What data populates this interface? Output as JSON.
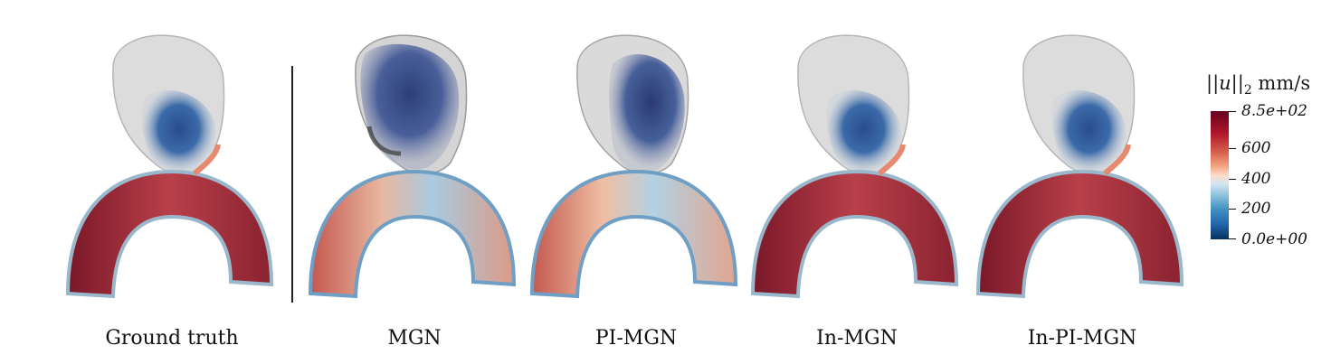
{
  "panels": [
    {
      "caption": "Ground truth",
      "arch": "red",
      "sac": "gt"
    },
    {
      "caption": "MGN",
      "arch": "light",
      "sac": "dark"
    },
    {
      "caption": "PI-MGN",
      "arch": "light",
      "sac": "dark"
    },
    {
      "caption": "In-MGN",
      "arch": "red",
      "sac": "gt"
    },
    {
      "caption": "In-PI-MGN",
      "arch": "red",
      "sac": "gt"
    }
  ],
  "colorbar": {
    "title_norm": "||u||",
    "title_sub": "2",
    "title_unit": " mm/s",
    "ticks": [
      "8.5e+02",
      "600",
      "400",
      "200",
      "0.0e+00"
    ]
  },
  "colors": {
    "high": "#67001f",
    "mid": "#f7f7f7",
    "low": "#053061"
  }
}
